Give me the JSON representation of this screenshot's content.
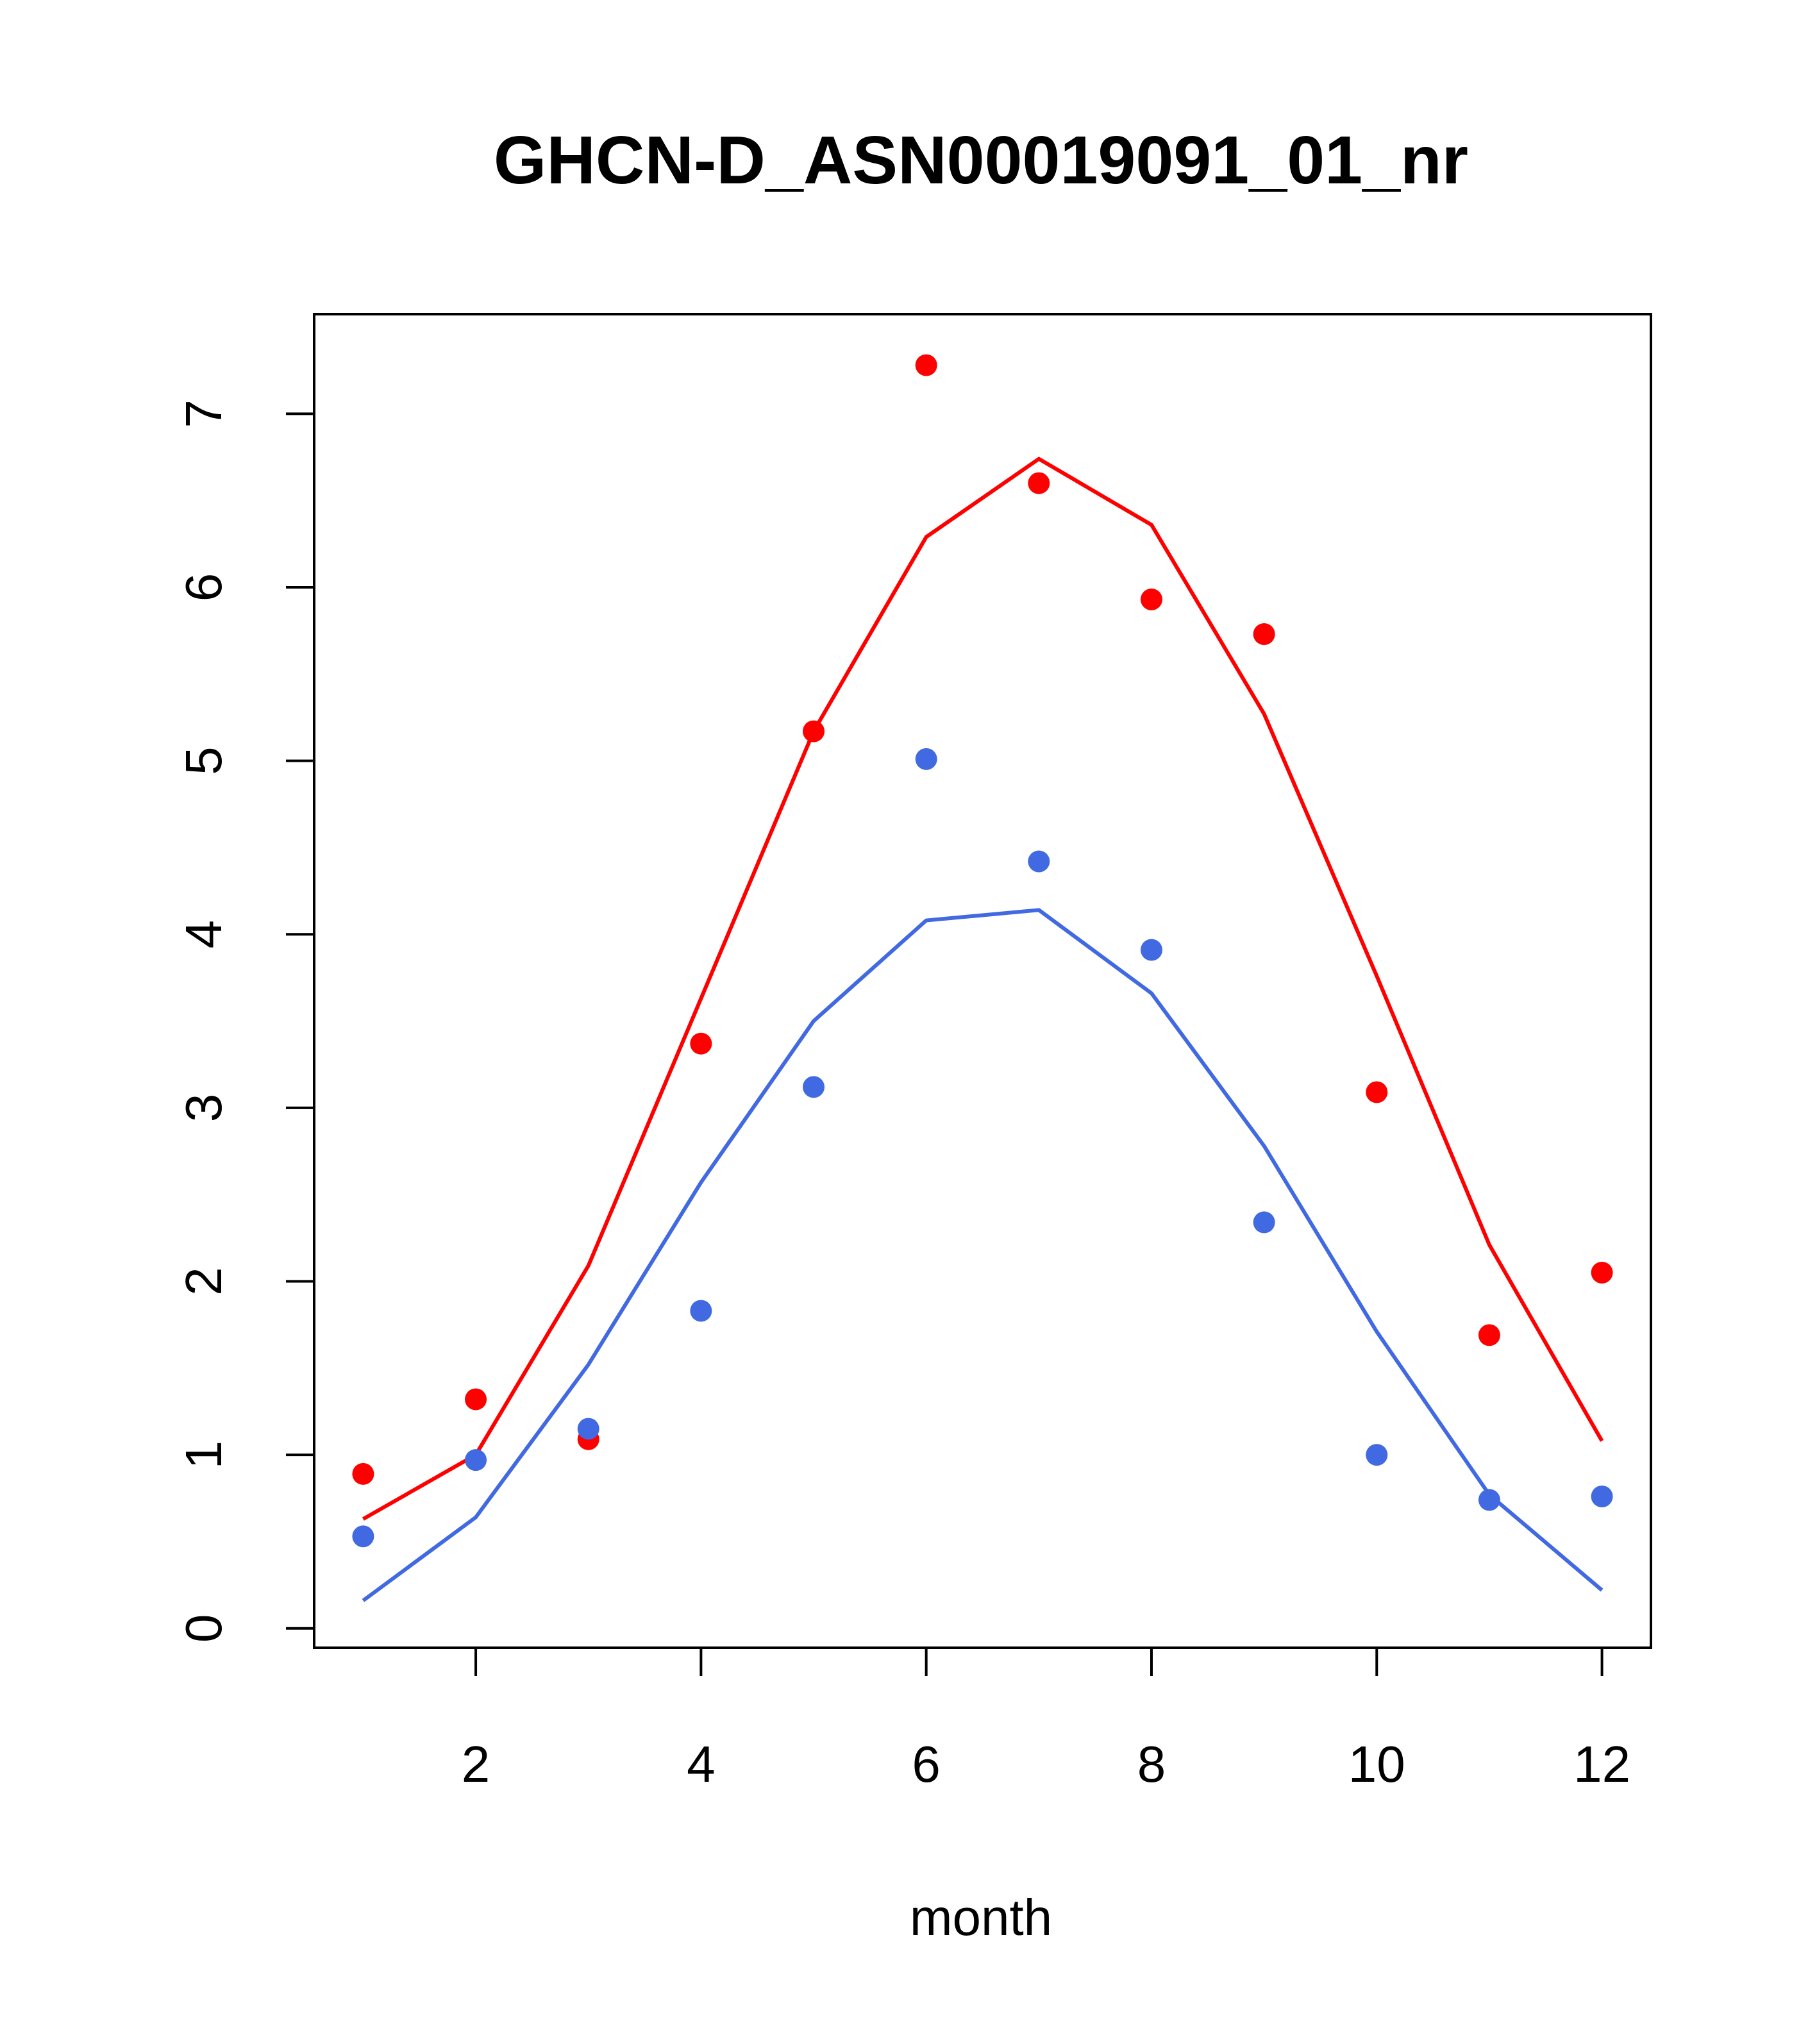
{
  "chart_data": {
    "type": "scatter",
    "title": "GHCN-D_ASN00019091_01_nr",
    "xlabel": "month",
    "ylabel": "",
    "xlim": [
      0.565,
      12.435
    ],
    "ylim": [
      -0.112,
      7.574
    ],
    "x_ticks": [
      2,
      4,
      6,
      8,
      10,
      12
    ],
    "y_ticks": [
      0,
      1,
      2,
      3,
      4,
      5,
      6,
      7
    ],
    "grid": false,
    "legend": "none",
    "x": [
      1,
      2,
      3,
      4,
      5,
      6,
      7,
      8,
      9,
      10,
      11,
      12
    ],
    "series": [
      {
        "color": "#ff0000",
        "points": [
          0.89,
          1.32,
          1.09,
          3.37,
          5.17,
          7.28,
          6.6,
          5.93,
          5.73,
          3.09,
          1.69,
          2.05
        ],
        "line": [
          0.63,
          1.0,
          2.09,
          3.63,
          5.17,
          6.29,
          6.74,
          6.36,
          5.27,
          3.76,
          2.21,
          1.08
        ]
      },
      {
        "color": "#4169e1",
        "points": [
          0.53,
          0.97,
          1.15,
          1.83,
          3.12,
          5.01,
          4.42,
          3.91,
          2.34,
          1.0,
          0.74,
          0.76
        ],
        "line": [
          0.16,
          0.64,
          1.52,
          2.57,
          3.5,
          4.08,
          4.14,
          3.66,
          2.78,
          1.71,
          0.77,
          0.22
        ]
      }
    ]
  }
}
